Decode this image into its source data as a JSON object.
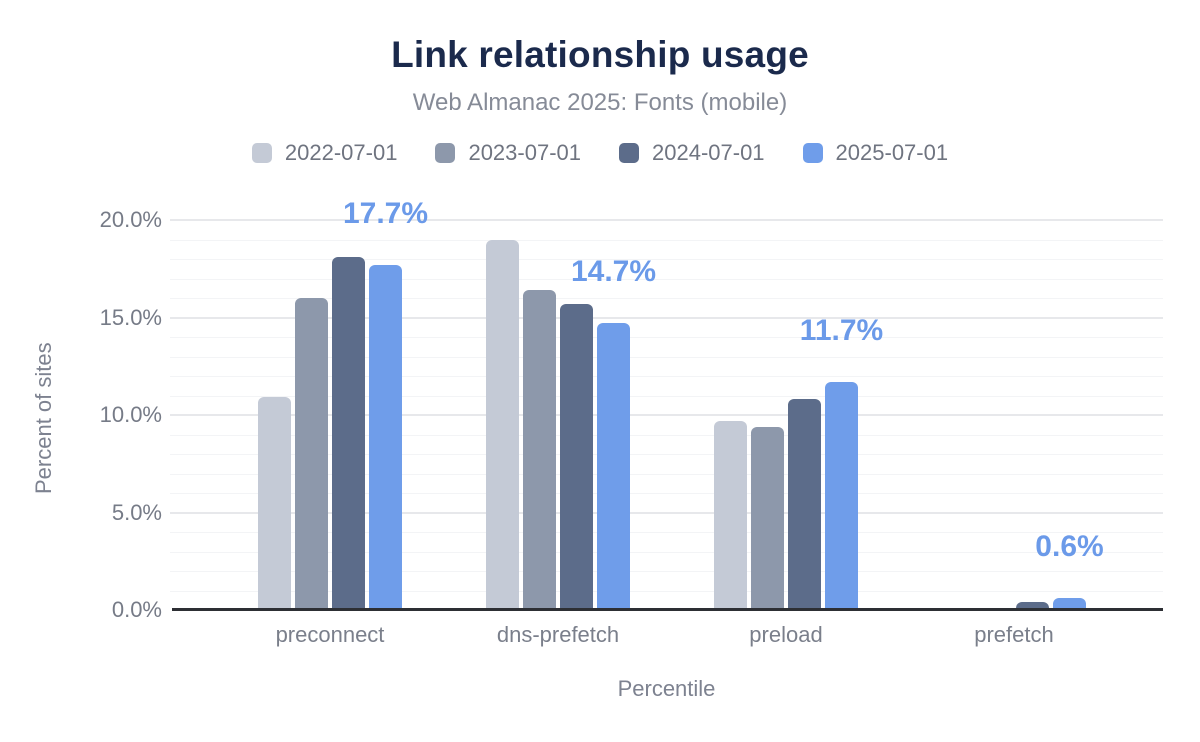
{
  "chart_data": {
    "type": "bar",
    "title": "Link relationship usage",
    "subtitle": "Web Almanac 2025: Fonts (mobile)",
    "xlabel": "Percentile",
    "ylabel": "Percent of sites",
    "categories": [
      "preconnect",
      "dns-prefetch",
      "preload",
      "prefetch"
    ],
    "series": [
      {
        "name": "2022-07-01",
        "color": "#c4cad6",
        "values": [
          10.9,
          19.0,
          9.7,
          0.0
        ]
      },
      {
        "name": "2023-07-01",
        "color": "#8d98ab",
        "values": [
          16.0,
          16.4,
          9.4,
          0.0
        ]
      },
      {
        "name": "2024-07-01",
        "color": "#5c6c8a",
        "values": [
          18.1,
          15.7,
          10.8,
          0.4
        ]
      },
      {
        "name": "2025-07-01",
        "color": "#6f9dea",
        "values": [
          17.7,
          14.7,
          11.7,
          0.6
        ]
      }
    ],
    "annotations": {
      "series": "2025-07-01",
      "labels": [
        "17.7%",
        "14.7%",
        "11.7%",
        "0.6%"
      ],
      "color": "#6b9ae9"
    },
    "y_axis": {
      "min": 0,
      "max": 20,
      "major_step": 5,
      "minor_step": 1,
      "ticks": [
        "0.0%",
        "5.0%",
        "10.0%",
        "15.0%",
        "20.0%"
      ]
    },
    "legend_position": "top",
    "grid": true
  },
  "colors": {
    "title": "#1b2a4c",
    "subtitle": "#868b97",
    "axis_line": "#2d2f34",
    "tick_text": "#767b87",
    "grid_major": "#e7e8eb",
    "grid_minor": "#f3f4f6",
    "background": "#ffffff"
  }
}
